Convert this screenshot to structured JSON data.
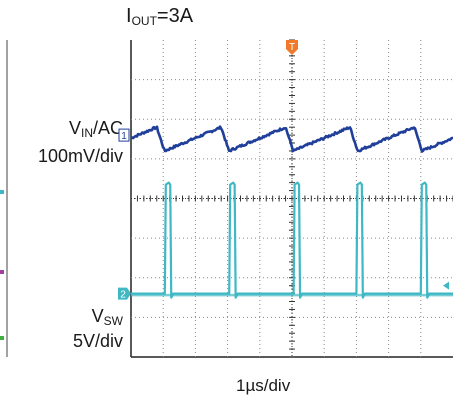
{
  "title": {
    "main": "I",
    "sub": "OUT",
    "rest": "=3A"
  },
  "channels": [
    {
      "id": "ch1",
      "marker": "1",
      "name_main": "V",
      "name_sub": "IN",
      "name_rest": "/AC",
      "scale": "100mV/div",
      "color": "#1f3f9a"
    },
    {
      "id": "ch2",
      "marker": "2",
      "name_main": "V",
      "name_sub": "SW",
      "name_rest": "",
      "scale": "5V/div",
      "color": "#3fb8c4"
    }
  ],
  "trigger": {
    "marker": "T",
    "color": "#f07a2a"
  },
  "timebase": "1µs/div",
  "chart_data": {
    "type": "line",
    "grid": true,
    "x_divisions": 10,
    "y_divisions": 8,
    "x_unit_per_div": "1µs",
    "switching_edges_div": [
      1.05,
      3.05,
      5.05,
      7.0,
      9.0
    ],
    "pulse_width_div": 0.2,
    "series": [
      {
        "name": "VIN/AC",
        "scale": "100mV/div",
        "ripple_div": [
          -0.3,
          0.3
        ],
        "baseline_div": 5.5
      },
      {
        "name": "VSW",
        "scale": "5V/div",
        "low_div": 1.6,
        "high_div": 4.35
      }
    ]
  }
}
